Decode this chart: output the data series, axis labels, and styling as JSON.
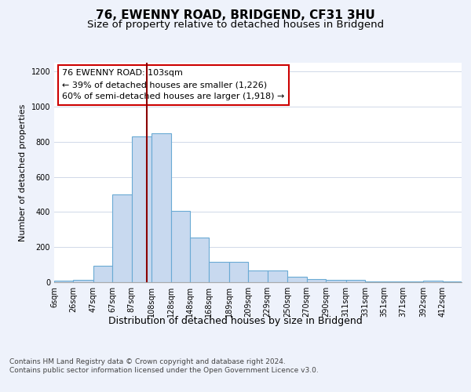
{
  "title": "76, EWENNY ROAD, BRIDGEND, CF31 3HU",
  "subtitle": "Size of property relative to detached houses in Bridgend",
  "xlabel": "Distribution of detached houses by size in Bridgend",
  "ylabel": "Number of detached properties",
  "bin_labels": [
    "6sqm",
    "26sqm",
    "47sqm",
    "67sqm",
    "87sqm",
    "108sqm",
    "128sqm",
    "148sqm",
    "168sqm",
    "189sqm",
    "209sqm",
    "229sqm",
    "250sqm",
    "270sqm",
    "290sqm",
    "311sqm",
    "331sqm",
    "351sqm",
    "371sqm",
    "392sqm",
    "412sqm"
  ],
  "bin_edges": [
    6,
    26,
    47,
    67,
    87,
    108,
    128,
    148,
    168,
    189,
    209,
    229,
    250,
    270,
    290,
    311,
    331,
    351,
    371,
    392,
    412
  ],
  "bar_heights": [
    10,
    15,
    95,
    500,
    830,
    850,
    405,
    255,
    115,
    115,
    65,
    65,
    30,
    20,
    15,
    15,
    5,
    5,
    5,
    10,
    5
  ],
  "bar_color": "#c8d9ef",
  "bar_edgecolor": "#6aaad4",
  "vline_x": 103,
  "vline_color": "#8b0000",
  "annotation_line1": "76 EWENNY ROAD: 103sqm",
  "annotation_line2": "← 39% of detached houses are smaller (1,226)",
  "annotation_line3": "60% of semi-detached houses are larger (1,918) →",
  "annotation_box_edgecolor": "#cc0000",
  "ylim": [
    0,
    1250
  ],
  "yticks": [
    0,
    200,
    400,
    600,
    800,
    1000,
    1200
  ],
  "footer_text": "Contains HM Land Registry data © Crown copyright and database right 2024.\nContains public sector information licensed under the Open Government Licence v3.0.",
  "bg_color": "#eef2fb",
  "plot_bg_color": "#ffffff",
  "grid_color": "#d0d8e8",
  "title_fontsize": 11,
  "subtitle_fontsize": 9.5,
  "xlabel_fontsize": 9,
  "ylabel_fontsize": 8,
  "tick_fontsize": 7,
  "annotation_fontsize": 8,
  "footer_fontsize": 6.5
}
